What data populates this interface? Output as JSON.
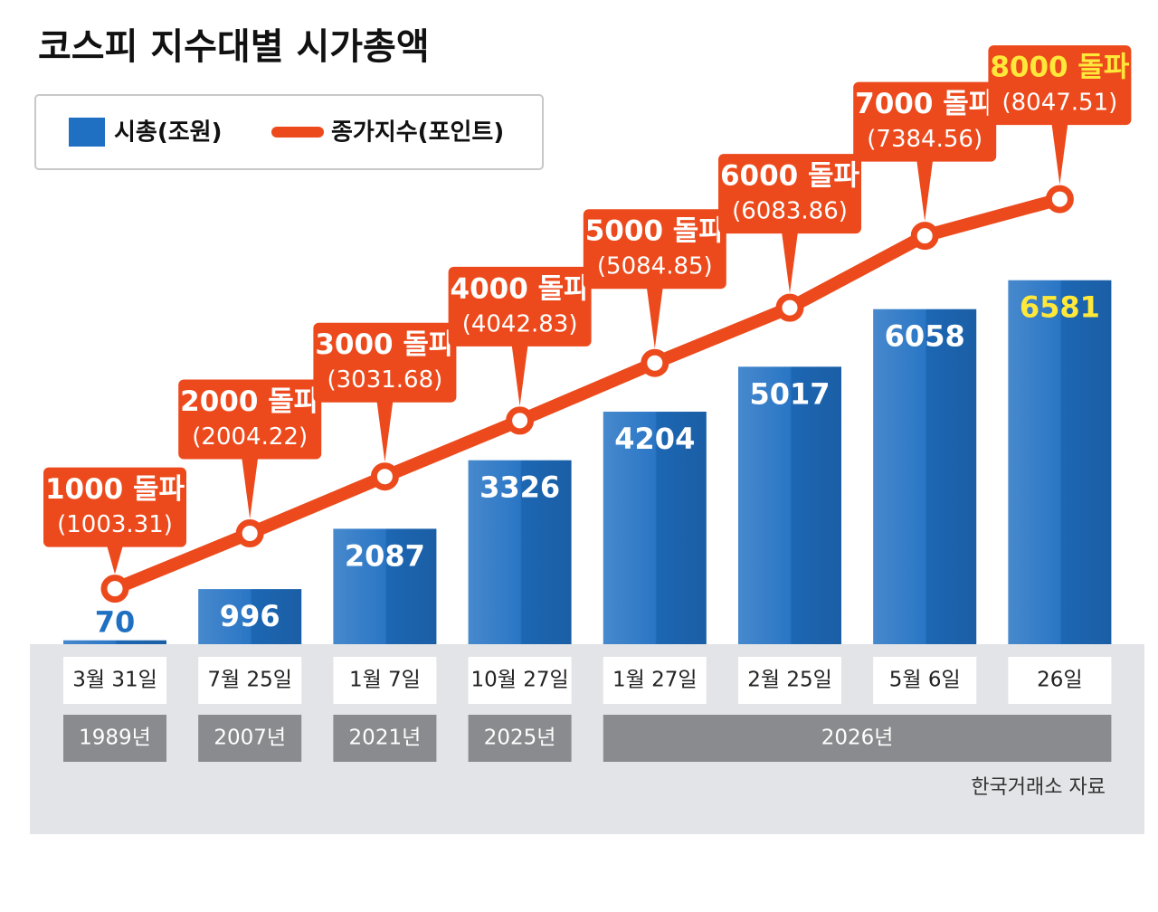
{
  "chart_data": {
    "type": "bar",
    "title": "코스피 지수대별 시가총액",
    "categories": [
      "3월 31일",
      "7월 25일",
      "1월 7일",
      "10월 27일",
      "1월 27일",
      "2월 25일",
      "5월 6일",
      "26일"
    ],
    "years": [
      "1989년",
      "2007년",
      "2021년",
      "2025년",
      "2026년",
      null,
      null,
      null
    ],
    "series": [
      {
        "name": "시총(조원)",
        "color": "#1f6fc2",
        "values": [
          70,
          996,
          2087,
          3326,
          4204,
          5017,
          6058,
          6581
        ]
      },
      {
        "name": "종가지수(포인트)",
        "type": "line",
        "color": "#ec4a1c",
        "values": [
          1003.31,
          2004.22,
          3031.68,
          4042.83,
          5084.85,
          6083.86,
          7384.56,
          8047.51
        ],
        "value_labels": [
          "(1003.31)",
          "(2004.22)",
          "(3031.68)",
          "(4042.83)",
          "(5084.85)",
          "(6083.86)",
          "(7384.56)",
          "(8047.51)"
        ],
        "annotations": [
          "1000 돌파",
          "2000 돌파",
          "3000 돌파",
          "4000 돌파",
          "5000 돌파",
          "6000 돌파",
          "7000 돌파",
          "8000 돌파"
        ]
      }
    ],
    "ylim": [
      0,
      8000
    ],
    "source": "한국거래소 자료"
  }
}
